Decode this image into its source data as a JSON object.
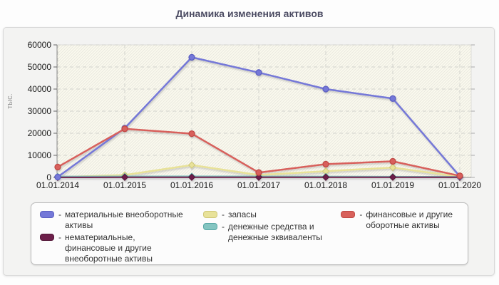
{
  "chart_data": {
    "type": "line",
    "title": "Динамика изменения активов",
    "ylabel": "тыс.",
    "x_categories": [
      "01.01.2014",
      "01.01.2015",
      "01.01.2016",
      "01.01.2017",
      "01.01.2018",
      "01.01.2019",
      "01.01.2020"
    ],
    "ylim": [
      0,
      60000
    ],
    "y_ticks": [
      0,
      10000,
      20000,
      30000,
      40000,
      50000,
      60000
    ],
    "grid": "dashed",
    "plot_bg": "#fbfaef",
    "hatch_color": "#e9e8df",
    "grid_color": "#d2d2cc",
    "axis_color": "#8c8c8c",
    "series": [
      {
        "name": "материальные внеоборотные активы",
        "color": "#7478d8",
        "edge": "#5d61c2",
        "marker": "circle",
        "values": [
          200,
          22300,
          54400,
          47500,
          40000,
          35700,
          500
        ]
      },
      {
        "name": "нематериальные, финансовые и другие внеоборотные активы",
        "color": "#6d1f4a",
        "edge": "#531637",
        "marker": "diamond",
        "values": [
          30,
          60,
          80,
          60,
          80,
          100,
          50
        ]
      },
      {
        "name": "запасы",
        "color": "#e8e299",
        "edge": "#d0c878",
        "marker": "diamond",
        "values": [
          150,
          1100,
          5600,
          1100,
          2800,
          4500,
          250
        ]
      },
      {
        "name": "денежные средства и денежные эквиваленты",
        "color": "#84c5c1",
        "edge": "#58a8a5",
        "marker": "diamond",
        "values": [
          350,
          400,
          450,
          400,
          350,
          300,
          200
        ]
      },
      {
        "name": "финансовые и другие оборотные активы",
        "color": "#d8615b",
        "edge": "#c04a45",
        "marker": "circle",
        "values": [
          4700,
          22000,
          19800,
          2200,
          6000,
          7300,
          700
        ]
      }
    ],
    "legend": {
      "position": "bottom",
      "prefix": "-",
      "columns": [
        [
          0,
          1
        ],
        [
          2,
          3
        ],
        [
          4
        ]
      ],
      "items": [
        {
          "label": "материальные внеоборотные\nактивы"
        },
        {
          "label": "нематериальные,\nфинансовые и другие\nвнеоборотные активы"
        },
        {
          "label": "запасы"
        },
        {
          "label": "денежные средства и\nденежные эквиваленты"
        },
        {
          "label": "финансовые и другие\nоборотные активы"
        }
      ]
    }
  }
}
